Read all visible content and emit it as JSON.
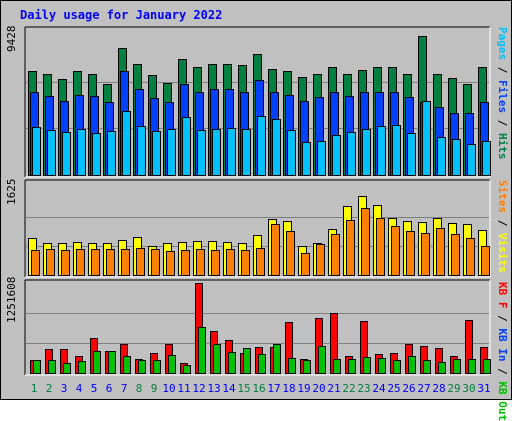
{
  "title": "Daily usage for January 2022",
  "colors": {
    "hits": "#008040",
    "files": "#0040ff",
    "pages": "#00c0ff",
    "visits": "#ffff00",
    "sites": "#ff8000",
    "kbin": "#00c000",
    "kbout": "#ff0000",
    "weekend_day": "#008040",
    "weekday": "#0000ff"
  },
  "legend": {
    "top": [
      {
        "text": "Pages",
        "color": "#00c0ff"
      },
      {
        "text": " / ",
        "color": "#000000"
      },
      {
        "text": "Files",
        "color": "#0040ff"
      },
      {
        "text": " / ",
        "color": "#000000"
      },
      {
        "text": "Hits",
        "color": "#008040"
      }
    ],
    "middle": [
      {
        "text": "Sites",
        "color": "#ff8000"
      },
      {
        "text": " / ",
        "color": "#000000"
      },
      {
        "text": "Visits",
        "color": "#ffff00"
      }
    ],
    "bottom": [
      {
        "text": "KB F",
        "color": "#ff0000"
      },
      {
        "text": " / ",
        "color": "#000000"
      },
      {
        "text": "KB In",
        "color": "#0040ff"
      },
      {
        "text": " / ",
        "color": "#000000"
      },
      {
        "text": "KB Out",
        "color": "#00c000"
      }
    ]
  },
  "chart_data": [
    {
      "type": "bar",
      "name": "hits-files-pages",
      "ymax_label": "9428",
      "ylim": [
        0,
        9428
      ],
      "categories": [
        "1",
        "2",
        "3",
        "4",
        "5",
        "6",
        "7",
        "8",
        "9",
        "10",
        "11",
        "12",
        "13",
        "14",
        "15",
        "16",
        "17",
        "18",
        "19",
        "20",
        "21",
        "22",
        "23",
        "24",
        "25",
        "26",
        "27",
        "28",
        "29",
        "30",
        "31"
      ],
      "series": [
        {
          "name": "Hits",
          "values": [
            7000,
            6800,
            6450,
            6980,
            6800,
            6100,
            8550,
            7470,
            6730,
            6220,
            7820,
            7240,
            7470,
            7470,
            7440,
            8120,
            7140,
            6980,
            6630,
            6800,
            7240,
            6800,
            7050,
            7240,
            7240,
            6800,
            9380,
            6800,
            6550,
            6100,
            7240
          ]
        },
        {
          "name": "Files",
          "values": [
            5560,
            5350,
            5000,
            5400,
            5350,
            4920,
            6970,
            5780,
            5190,
            4900,
            6160,
            5560,
            5780,
            5780,
            5600,
            6390,
            5560,
            5400,
            5000,
            5220,
            5600,
            5350,
            5560,
            5560,
            5610,
            5250,
            4920,
            4560,
            4150,
            4150,
            4920
          ]
        },
        {
          "name": "Pages",
          "values": [
            3200,
            3010,
            2880,
            3080,
            2840,
            2960,
            4280,
            3270,
            2930,
            3130,
            3920,
            3040,
            3120,
            3150,
            3110,
            4000,
            3770,
            3050,
            2240,
            2280,
            2700,
            2880,
            3130,
            3270,
            3340,
            2860,
            4990,
            2530,
            2430,
            2120,
            2310
          ]
        }
      ]
    },
    {
      "type": "bar",
      "name": "visits-sites",
      "ymax_label": "1625",
      "ylim": [
        0,
        1625
      ],
      "categories": [
        "1",
        "2",
        "3",
        "4",
        "5",
        "6",
        "7",
        "8",
        "9",
        "10",
        "11",
        "12",
        "13",
        "14",
        "15",
        "16",
        "17",
        "18",
        "19",
        "20",
        "21",
        "22",
        "23",
        "24",
        "25",
        "26",
        "27",
        "28",
        "29",
        "30",
        "31"
      ],
      "series": [
        {
          "name": "Visits",
          "values": [
            690,
            600,
            600,
            620,
            600,
            600,
            650,
            710,
            550,
            600,
            620,
            640,
            640,
            620,
            600,
            750,
            1050,
            1010,
            550,
            600,
            850,
            1290,
            1470,
            1300,
            1070,
            1010,
            990,
            1060,
            970,
            950,
            840
          ]
        },
        {
          "name": "Sites",
          "values": [
            470,
            480,
            470,
            490,
            480,
            490,
            480,
            500,
            490,
            450,
            470,
            490,
            460,
            480,
            460,
            500,
            960,
            830,
            420,
            570,
            760,
            1020,
            1260,
            1070,
            920,
            830,
            780,
            870,
            760,
            700,
            540
          ]
        }
      ]
    },
    {
      "type": "bar",
      "name": "kbytes",
      "ymax_label": "1251608",
      "ylim": [
        0,
        1251608
      ],
      "categories": [
        "1",
        "2",
        "3",
        "4",
        "5",
        "6",
        "7",
        "8",
        "9",
        "10",
        "11",
        "12",
        "13",
        "14",
        "15",
        "16",
        "17",
        "18",
        "19",
        "20",
        "21",
        "22",
        "23",
        "24",
        "25",
        "26",
        "27",
        "28",
        "29",
        "30",
        "31"
      ],
      "series": [
        {
          "name": "KB F",
          "values": [
            180000,
            340000,
            330000,
            230000,
            480000,
            300000,
            410000,
            200000,
            280000,
            410000,
            140000,
            1251608,
            580000,
            460000,
            280000,
            360000,
            360000,
            710000,
            190000,
            760000,
            830000,
            230000,
            730000,
            260000,
            280000,
            410000,
            380000,
            350000,
            240000,
            740000,
            360000
          ]
        },
        {
          "name": "KB In",
          "values": [
            180000,
            180000,
            140000,
            160000,
            310000,
            310000,
            240000,
            180000,
            180000,
            250000,
            110000,
            640000,
            400000,
            290000,
            350000,
            270000,
            400000,
            210000,
            180000,
            380000,
            200000,
            190000,
            220000,
            210000,
            180000,
            230000,
            180000,
            150000,
            190000,
            190000,
            190000
          ]
        }
      ]
    }
  ],
  "x_labels": [
    "1",
    "2",
    "3",
    "4",
    "5",
    "6",
    "7",
    "8",
    "9",
    "10",
    "11",
    "12",
    "13",
    "14",
    "15",
    "16",
    "17",
    "18",
    "19",
    "20",
    "21",
    "22",
    "23",
    "24",
    "25",
    "26",
    "27",
    "28",
    "29",
    "30",
    "31"
  ],
  "weekend_days": [
    "1",
    "2",
    "8",
    "9",
    "15",
    "16",
    "22",
    "23",
    "29",
    "30"
  ]
}
